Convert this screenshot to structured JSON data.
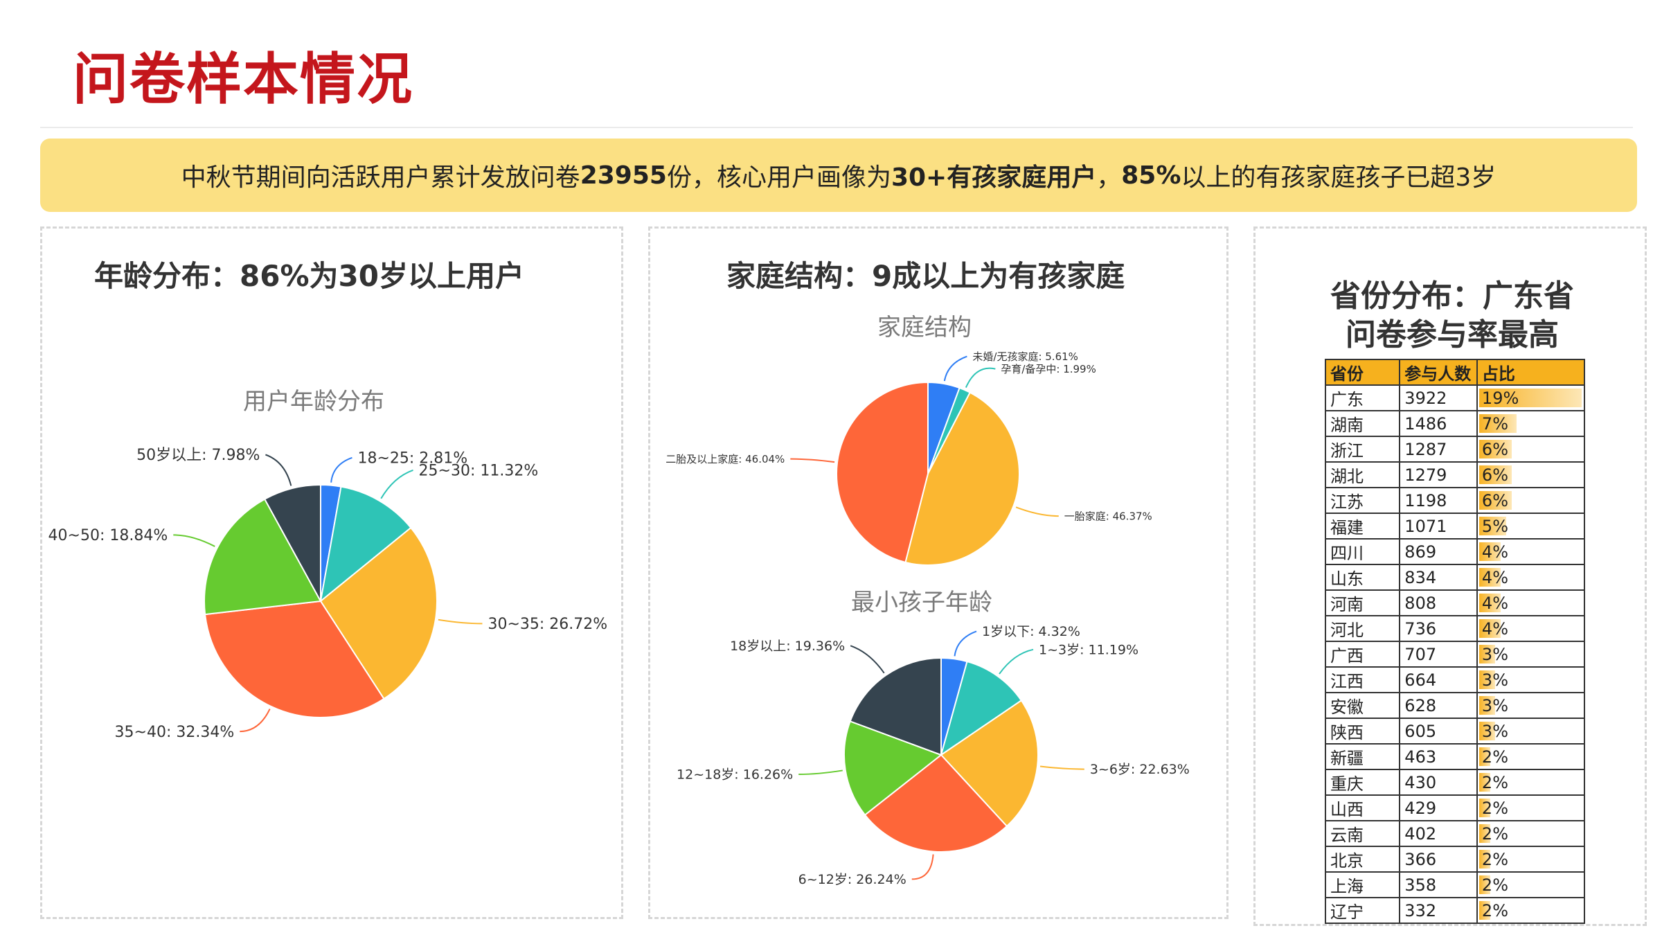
{
  "page": {
    "title": "问卷样本情况",
    "banner": {
      "t1": "中秋节期间向活跃用户累计发放问卷 ",
      "b1": "23955",
      "t2": " 份，核心用户画像为",
      "b2": "30+有孩家庭用户",
      "t3": "，",
      "b3": "85%",
      "t4": "以上的有孩家庭孩子已超3岁"
    }
  },
  "panels": {
    "age": {
      "heading": "年龄分布：86%为30岁以上用户"
    },
    "family": {
      "heading": "家庭结构：9成以上为有孩家庭"
    },
    "province": {
      "heading_line1": "省份分布：广东省",
      "heading_line2": "问卷参与率最高"
    }
  },
  "chart_data": [
    {
      "type": "pie",
      "title": "用户年龄分布",
      "slices": [
        {
          "label": "18~25",
          "value": 2.81,
          "display": "18~25: 2.81%",
          "color": "#2f7ef5"
        },
        {
          "label": "25~30",
          "value": 11.32,
          "display": "25~30: 11.32%",
          "color": "#2ec4b6"
        },
        {
          "label": "30~35",
          "value": 26.72,
          "display": "30~35: 26.72%",
          "color": "#fbb731"
        },
        {
          "label": "35~40",
          "value": 32.34,
          "display": "35~40: 32.34%",
          "color": "#fe6639"
        },
        {
          "label": "40~50",
          "value": 18.84,
          "display": "40~50: 18.84%",
          "color": "#66cb30"
        },
        {
          "label": "50岁以上",
          "value": 7.98,
          "display": "50岁以上: 7.98%",
          "color": "#35444f"
        }
      ]
    },
    {
      "type": "pie",
      "title": "家庭结构",
      "slices": [
        {
          "label": "未婚/无孩家庭",
          "value": 5.61,
          "display": "未婚/无孩家庭: 5.61%",
          "color": "#2f7ef5"
        },
        {
          "label": "孕育/备孕中",
          "value": 1.99,
          "display": "孕育/备孕中: 1.99%",
          "color": "#2ec4b6"
        },
        {
          "label": "一胎家庭",
          "value": 46.37,
          "display": "一胎家庭: 46.37%",
          "color": "#fbb731"
        },
        {
          "label": "二胎及以上家庭",
          "value": 46.04,
          "display": "二胎及以上家庭: 46.04%",
          "color": "#fe6639"
        }
      ]
    },
    {
      "type": "pie",
      "title": "最小孩子年龄",
      "slices": [
        {
          "label": "1岁以下",
          "value": 4.32,
          "display": "1岁以下: 4.32%",
          "color": "#2f7ef5"
        },
        {
          "label": "1~3岁",
          "value": 11.19,
          "display": "1~3岁: 11.19%",
          "color": "#2ec4b6"
        },
        {
          "label": "3~6岁",
          "value": 22.63,
          "display": "3~6岁: 22.63%",
          "color": "#fbb731"
        },
        {
          "label": "6~12岁",
          "value": 26.24,
          "display": "6~12岁: 26.24%",
          "color": "#fe6639"
        },
        {
          "label": "12~18岁",
          "value": 16.26,
          "display": "12~18岁: 16.26%",
          "color": "#66cb30"
        },
        {
          "label": "18岁以上",
          "value": 19.36,
          "display": "18岁以上: 19.36%",
          "color": "#35444f"
        }
      ]
    },
    {
      "type": "table",
      "columns": [
        "省份",
        "参与人数",
        "占比"
      ],
      "rows": [
        {
          "province": "广东",
          "count": "3922",
          "share": "19%",
          "share_value": 19
        },
        {
          "province": "湖南",
          "count": "1486",
          "share": "7%",
          "share_value": 7
        },
        {
          "province": "浙江",
          "count": "1287",
          "share": "6%",
          "share_value": 6
        },
        {
          "province": "湖北",
          "count": "1279",
          "share": "6%",
          "share_value": 6
        },
        {
          "province": "江苏",
          "count": "1198",
          "share": "6%",
          "share_value": 6
        },
        {
          "province": "福建",
          "count": "1071",
          "share": "5%",
          "share_value": 5
        },
        {
          "province": "四川",
          "count": "869",
          "share": "4%",
          "share_value": 4
        },
        {
          "province": "山东",
          "count": "834",
          "share": "4%",
          "share_value": 4
        },
        {
          "province": "河南",
          "count": "808",
          "share": "4%",
          "share_value": 4
        },
        {
          "province": "河北",
          "count": "736",
          "share": "4%",
          "share_value": 4
        },
        {
          "province": "广西",
          "count": "707",
          "share": "3%",
          "share_value": 3
        },
        {
          "province": "江西",
          "count": "664",
          "share": "3%",
          "share_value": 3
        },
        {
          "province": "安徽",
          "count": "628",
          "share": "3%",
          "share_value": 3
        },
        {
          "province": "陕西",
          "count": "605",
          "share": "3%",
          "share_value": 3
        },
        {
          "province": "新疆",
          "count": "463",
          "share": "2%",
          "share_value": 2
        },
        {
          "province": "重庆",
          "count": "430",
          "share": "2%",
          "share_value": 2
        },
        {
          "province": "山西",
          "count": "429",
          "share": "2%",
          "share_value": 2
        },
        {
          "province": "云南",
          "count": "402",
          "share": "2%",
          "share_value": 2
        },
        {
          "province": "北京",
          "count": "366",
          "share": "2%",
          "share_value": 2
        },
        {
          "province": "上海",
          "count": "358",
          "share": "2%",
          "share_value": 2
        },
        {
          "province": "辽宁",
          "count": "332",
          "share": "2%",
          "share_value": 2
        }
      ]
    }
  ]
}
